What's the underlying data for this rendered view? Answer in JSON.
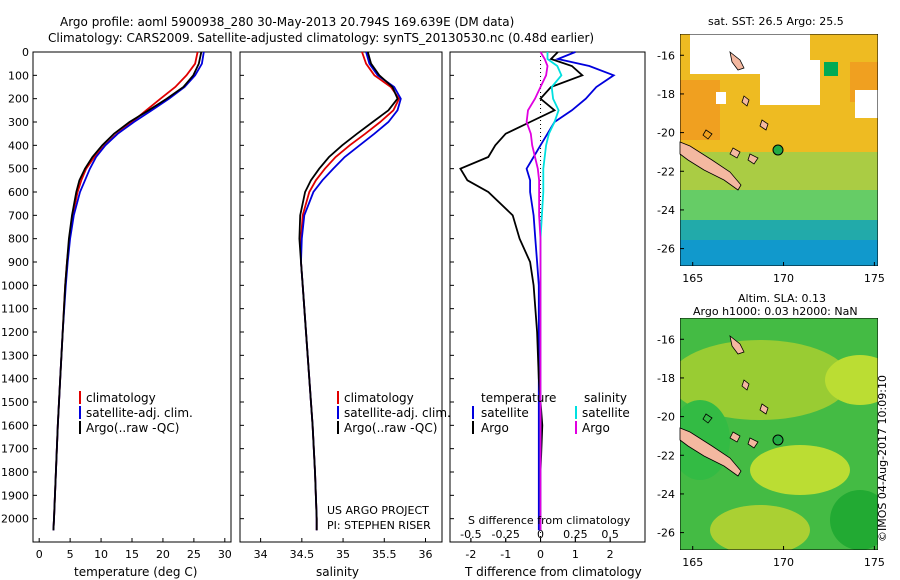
{
  "header": {
    "title_line1": "Argo profile: aoml 5900938_280 30-May-2013 20.794S 169.639E (DM data)",
    "title_line2": "Climatology: CARS2009. Satellite-adjusted climatology: synTS_20130530.nc (0.48d earlier)"
  },
  "chart_data": [
    {
      "type": "line",
      "xlabel": "temperature (deg C)",
      "xlim": [
        -1,
        31
      ],
      "ylim": [
        2100,
        0
      ],
      "x_ticks": [
        "0",
        "5",
        "10",
        "15",
        "20",
        "25",
        "30"
      ],
      "y_ticks": [
        "0",
        "100",
        "200",
        "300",
        "400",
        "500",
        "600",
        "700",
        "800",
        "900",
        "1000",
        "1100",
        "1200",
        "1300",
        "1400",
        "1500",
        "1600",
        "1700",
        "1800",
        "1900",
        "2000"
      ],
      "legend": [
        "climatology",
        "satellite-adj. clim.",
        "Argo(..raw -QC)"
      ],
      "legend_colors": [
        "#e00000",
        "#0000dd",
        "#000000"
      ],
      "depth": [
        0,
        50,
        100,
        150,
        200,
        250,
        300,
        350,
        400,
        450,
        500,
        550,
        600,
        700,
        800,
        900,
        1000,
        1200,
        1400,
        1600,
        1800,
        2000,
        2050
      ],
      "series": [
        {
          "name": "climatology",
          "color": "#e00000",
          "values": [
            25.6,
            25.2,
            23.8,
            22.0,
            19.6,
            17.3,
            15.0,
            12.6,
            10.6,
            8.9,
            7.6,
            6.8,
            6.2,
            5.4,
            4.9,
            4.5,
            4.2,
            3.8,
            3.4,
            3.0,
            2.7,
            2.4,
            2.3
          ]
        },
        {
          "name": "satellite-adj. clim.",
          "color": "#0000dd",
          "values": [
            26.6,
            26.3,
            25.2,
            23.5,
            21.0,
            18.2,
            15.3,
            12.7,
            10.7,
            9.2,
            8.2,
            7.4,
            6.6,
            5.6,
            5.0,
            4.6,
            4.3,
            3.8,
            3.4,
            3.0,
            2.7,
            2.4,
            2.3
          ]
        },
        {
          "name": "Argo(..raw -QC)",
          "color": "#000000",
          "values": [
            26.2,
            25.8,
            24.9,
            23.3,
            20.6,
            17.7,
            14.6,
            12.1,
            10.2,
            8.6,
            7.4,
            6.5,
            6.0,
            5.3,
            4.8,
            4.5,
            4.2,
            3.8,
            3.4,
            3.0,
            2.7,
            2.4,
            2.3
          ]
        }
      ]
    },
    {
      "type": "line",
      "xlabel": "salinity",
      "xlim": [
        33.75,
        36.2
      ],
      "ylim": [
        2100,
        0
      ],
      "x_ticks": [
        "34",
        "34.5",
        "35",
        "35.5",
        "36"
      ],
      "legend": [
        "climatology",
        "satellite-adj. clim.",
        "Argo(..raw -QC)"
      ],
      "legend_colors": [
        "#e00000",
        "#0000dd",
        "#000000"
      ],
      "annotation": [
        "US ARGO PROJECT",
        "PI: STEPHEN RISER"
      ],
      "depth": [
        0,
        50,
        100,
        150,
        200,
        250,
        300,
        350,
        400,
        450,
        500,
        550,
        600,
        700,
        800,
        900,
        1000,
        1200,
        1400,
        1600,
        1800,
        2000,
        2050
      ],
      "series": [
        {
          "name": "climatology",
          "color": "#e00000",
          "values": [
            35.23,
            35.28,
            35.38,
            35.58,
            35.68,
            35.61,
            35.45,
            35.27,
            35.08,
            34.91,
            34.78,
            34.67,
            34.59,
            34.51,
            34.49,
            34.49,
            34.51,
            34.55,
            34.59,
            34.63,
            34.66,
            34.68,
            34.68
          ]
        },
        {
          "name": "satellite-adj. clim.",
          "color": "#0000dd",
          "values": [
            35.28,
            35.32,
            35.42,
            35.62,
            35.7,
            35.66,
            35.55,
            35.38,
            35.2,
            35.02,
            34.88,
            34.75,
            34.64,
            34.53,
            34.5,
            34.49,
            34.51,
            34.55,
            34.59,
            34.63,
            34.66,
            34.68,
            34.68
          ]
        },
        {
          "name": "Argo(..raw -QC)",
          "color": "#000000",
          "values": [
            35.3,
            35.34,
            35.44,
            35.6,
            35.66,
            35.55,
            35.36,
            35.17,
            34.99,
            34.83,
            34.71,
            34.61,
            34.54,
            34.48,
            34.47,
            34.49,
            34.51,
            34.55,
            34.59,
            34.63,
            34.66,
            34.68,
            34.68
          ]
        }
      ]
    },
    {
      "type": "line",
      "xlabel": "T difference from climatology",
      "xlabel_top": "S difference from climatology",
      "xlim_T": [
        -2.6,
        3.0
      ],
      "xlim_S": [
        -0.65,
        0.75
      ],
      "ylim": [
        2100,
        0
      ],
      "x_ticks_T": [
        "-2",
        "-1",
        "0",
        "1",
        "2"
      ],
      "x_ticks_S": [
        "-0.5",
        "-0.25",
        "0",
        "0.25",
        "0.5"
      ],
      "legend_titles": [
        "temperature",
        "salinity"
      ],
      "legend_left": [
        "satellite",
        "Argo"
      ],
      "legend_right": [
        "satellite",
        "Argo"
      ],
      "depth": [
        0,
        30,
        60,
        100,
        150,
        200,
        250,
        300,
        350,
        400,
        450,
        500,
        550,
        600,
        700,
        800,
        900,
        1000,
        1200,
        1400,
        1600,
        1800,
        2000,
        2050
      ],
      "series": [
        {
          "name": "T satellite",
          "color": "#0000dd",
          "values": [
            1.0,
            0.5,
            1.4,
            2.1,
            1.6,
            1.3,
            0.9,
            0.4,
            0.2,
            0.0,
            -0.2,
            -0.4,
            -0.3,
            -0.3,
            -0.2,
            -0.15,
            -0.1,
            -0.05,
            -0.05,
            -0.05,
            -0.05,
            -0.05,
            -0.05,
            -0.05
          ]
        },
        {
          "name": "T Argo",
          "color": "#000000",
          "values": [
            0.5,
            0.3,
            0.9,
            1.2,
            0.3,
            0.0,
            0.4,
            -0.3,
            -1.0,
            -1.3,
            -1.5,
            -2.3,
            -2.1,
            -1.5,
            -0.8,
            -0.6,
            -0.3,
            -0.2,
            -0.1,
            -0.05,
            0.05,
            0.0,
            0.0,
            0.0
          ]
        },
        {
          "name": "S satellite",
          "color": "#00e0e0",
          "values": [
            0.05,
            0.05,
            0.12,
            0.15,
            0.08,
            0.09,
            0.13,
            0.1,
            0.06,
            0.04,
            0.03,
            0.02,
            0.02,
            0.02,
            0.01,
            0.0,
            0.0,
            0.0,
            0.0,
            0.0,
            0.0,
            0.0,
            0.0,
            0.0
          ]
        },
        {
          "name": "S Argo",
          "color": "#e000e0",
          "values": [
            0.0,
            0.03,
            0.05,
            0.04,
            0.0,
            -0.04,
            -0.09,
            -0.1,
            -0.07,
            -0.06,
            -0.04,
            -0.02,
            -0.01,
            -0.01,
            -0.01,
            0.0,
            0.0,
            0.0,
            0.0,
            0.0,
            0.0,
            0.0,
            0.0,
            0.0
          ]
        }
      ]
    },
    {
      "type": "heatmap",
      "title": "sat. SST: 26.5 Argo: 25.5",
      "x_ticks": [
        "165",
        "170",
        "175"
      ],
      "y_ticks": [
        "-16",
        "-18",
        "-20",
        "-22",
        "-24",
        "-26"
      ],
      "xlim": [
        164.3,
        175.2
      ],
      "ylim": [
        -26.9,
        -14.9
      ],
      "marker": [
        169.64,
        -20.79
      ]
    },
    {
      "type": "heatmap",
      "title_line1": "Altim. SLA: 0.13",
      "title_line2": "Argo h1000: 0.03 h2000: NaN",
      "x_ticks": [
        "165",
        "170",
        "175"
      ],
      "y_ticks": [
        "-16",
        "-18",
        "-20",
        "-22",
        "-24",
        "-26"
      ],
      "xlim": [
        164.3,
        175.2
      ],
      "ylim": [
        -26.9,
        -14.9
      ],
      "marker": [
        169.64,
        -20.79
      ]
    }
  ],
  "footer": {
    "stamp": "©IMOS 04-Aug-2017 10:09:10"
  }
}
